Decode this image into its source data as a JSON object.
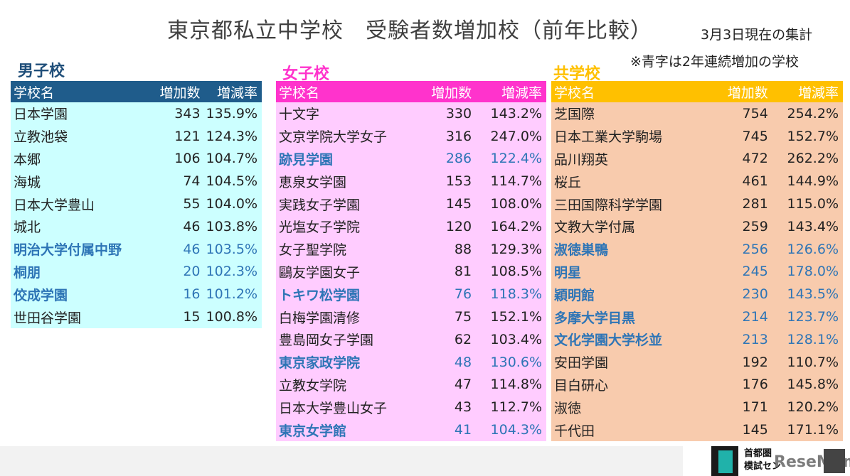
{
  "title": "東京都私立中学校　受験者数増加校（前年比較）",
  "as_of": "3月3日現在の集計",
  "note": "※青字は2年連続増加の学校",
  "headers": {
    "name": "学校名",
    "increase": "増加数",
    "rate": "増減率"
  },
  "boys": {
    "label": "男子校",
    "rows": [
      {
        "name": "日本学園",
        "increase": "343",
        "rate": "135.9%",
        "blue": false
      },
      {
        "name": "立教池袋",
        "increase": "121",
        "rate": "124.3%",
        "blue": false
      },
      {
        "name": "本郷",
        "increase": "106",
        "rate": "104.7%",
        "blue": false
      },
      {
        "name": "海城",
        "increase": "74",
        "rate": "104.5%",
        "blue": false
      },
      {
        "name": "日本大学豊山",
        "increase": "55",
        "rate": "104.0%",
        "blue": false
      },
      {
        "name": "城北",
        "increase": "46",
        "rate": "103.8%",
        "blue": false
      },
      {
        "name": "明治大学付属中野",
        "increase": "46",
        "rate": "103.5%",
        "blue": true
      },
      {
        "name": "桐朋",
        "increase": "20",
        "rate": "102.3%",
        "blue": true
      },
      {
        "name": "佼成学園",
        "increase": "16",
        "rate": "101.2%",
        "blue": true
      },
      {
        "name": "世田谷学園",
        "increase": "15",
        "rate": "100.8%",
        "blue": false
      }
    ]
  },
  "girls": {
    "label": "女子校",
    "rows": [
      {
        "name": "十文字",
        "increase": "330",
        "rate": "143.2%",
        "blue": false
      },
      {
        "name": "文京学院大学女子",
        "increase": "316",
        "rate": "247.0%",
        "blue": false
      },
      {
        "name": "跡見学園",
        "increase": "286",
        "rate": "122.4%",
        "blue": true
      },
      {
        "name": "恵泉女学園",
        "increase": "153",
        "rate": "114.7%",
        "blue": false
      },
      {
        "name": "実践女子学園",
        "increase": "145",
        "rate": "108.0%",
        "blue": false
      },
      {
        "name": "光塩女子学院",
        "increase": "120",
        "rate": "164.2%",
        "blue": false
      },
      {
        "name": "女子聖学院",
        "increase": "88",
        "rate": "129.3%",
        "blue": false
      },
      {
        "name": "鷗友学園女子",
        "increase": "81",
        "rate": "108.5%",
        "blue": false
      },
      {
        "name": "トキワ松学園",
        "increase": "76",
        "rate": "118.3%",
        "blue": true
      },
      {
        "name": "白梅学園清修",
        "increase": "75",
        "rate": "152.1%",
        "blue": false
      },
      {
        "name": "豊島岡女子学園",
        "increase": "62",
        "rate": "103.4%",
        "blue": false
      },
      {
        "name": "東京家政学院",
        "increase": "48",
        "rate": "130.6%",
        "blue": true
      },
      {
        "name": "立教女学院",
        "increase": "47",
        "rate": "114.8%",
        "blue": false
      },
      {
        "name": "日本大学豊山女子",
        "increase": "43",
        "rate": "112.7%",
        "blue": false
      },
      {
        "name": "東京女学館",
        "increase": "41",
        "rate": "104.3%",
        "blue": true
      }
    ]
  },
  "coed": {
    "label": "共学校",
    "rows": [
      {
        "name": "芝国際",
        "increase": "754",
        "rate": "254.2%",
        "blue": false
      },
      {
        "name": "日本工業大学駒場",
        "increase": "745",
        "rate": "152.7%",
        "blue": false
      },
      {
        "name": "品川翔英",
        "increase": "472",
        "rate": "262.2%",
        "blue": false
      },
      {
        "name": "桜丘",
        "increase": "461",
        "rate": "144.9%",
        "blue": false
      },
      {
        "name": "三田国際科学学園",
        "increase": "281",
        "rate": "115.0%",
        "blue": false
      },
      {
        "name": "文教大学付属",
        "increase": "259",
        "rate": "143.4%",
        "blue": false
      },
      {
        "name": "淑徳巣鴨",
        "increase": "256",
        "rate": "126.6%",
        "blue": true
      },
      {
        "name": "明星",
        "increase": "245",
        "rate": "178.0%",
        "blue": true
      },
      {
        "name": "穎明館",
        "increase": "230",
        "rate": "143.5%",
        "blue": true
      },
      {
        "name": "多摩大学目黒",
        "increase": "214",
        "rate": "123.7%",
        "blue": true
      },
      {
        "name": "文化学園大学杉並",
        "increase": "213",
        "rate": "128.1%",
        "blue": true
      },
      {
        "name": "安田学園",
        "increase": "192",
        "rate": "110.7%",
        "blue": false
      },
      {
        "name": "目白研心",
        "increase": "176",
        "rate": "145.8%",
        "blue": false
      },
      {
        "name": "淑徳",
        "increase": "171",
        "rate": "120.2%",
        "blue": false
      },
      {
        "name": "千代田",
        "increase": "145",
        "rate": "171.1%",
        "blue": false
      }
    ]
  },
  "footer": {
    "logo_line1": "首都圏",
    "logo_line2": "模試セン",
    "watermark": "ReseMom"
  }
}
